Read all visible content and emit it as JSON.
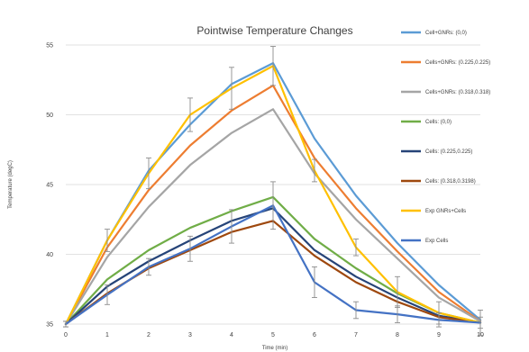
{
  "chart_data": {
    "type": "line",
    "title": "Pointwise Temperature Changes",
    "xlabel": "Time (min)",
    "ylabel": "Temperature (degC)",
    "x": [
      0,
      1,
      2,
      3,
      4,
      5,
      6,
      7,
      8,
      9,
      10
    ],
    "xlim": [
      0,
      10
    ],
    "ylim": [
      35,
      55
    ],
    "yticks": [
      35,
      40,
      45,
      50,
      55
    ],
    "grid": true,
    "legend_position": "right",
    "series": [
      {
        "name": "Cell+GNRs: (0,0)",
        "color": "#5b9bd5",
        "errorbars": false,
        "values": [
          35,
          41.0,
          46.0,
          49.3,
          52.2,
          53.7,
          48.3,
          44.2,
          40.8,
          37.8,
          35.3
        ]
      },
      {
        "name": "Cells+GNRs: (0.225,0.225)",
        "color": "#ed7d31",
        "errorbars": false,
        "values": [
          35,
          40.5,
          44.6,
          47.8,
          50.3,
          52.1,
          46.9,
          43.3,
          40.2,
          37.3,
          35.2
        ]
      },
      {
        "name": "Cells+GNRs: (0.318,0.318)",
        "color": "#a5a5a5",
        "errorbars": false,
        "values": [
          35,
          39.8,
          43.4,
          46.4,
          48.7,
          50.4,
          45.8,
          42.5,
          39.7,
          36.9,
          35.2
        ]
      },
      {
        "name": "Cells: (0,0)",
        "color": "#70ad47",
        "errorbars": false,
        "values": [
          35,
          38.2,
          40.3,
          41.9,
          43.1,
          44.1,
          41.1,
          39.0,
          37.2,
          35.8,
          35.1
        ]
      },
      {
        "name": "Cells: (0.225,0.225)",
        "color": "#264478",
        "errorbars": false,
        "values": [
          35,
          37.7,
          39.5,
          41.0,
          42.4,
          43.3,
          40.3,
          38.4,
          36.9,
          35.6,
          35.1
        ]
      },
      {
        "name": "Cells: (0.318,0.3198)",
        "color": "#9e480e",
        "errorbars": false,
        "values": [
          35,
          37.2,
          39.0,
          40.3,
          41.6,
          42.4,
          39.9,
          38.0,
          36.6,
          35.5,
          35.1
        ]
      },
      {
        "name": "Exp GNRs+Cells",
        "color": "#ffc000",
        "errorbars": true,
        "values": [
          35,
          41.0,
          45.8,
          50.0,
          51.9,
          53.5,
          46.0,
          40.5,
          37.3,
          35.8,
          35.1
        ],
        "errors": [
          0.2,
          0.8,
          1.1,
          1.2,
          1.5,
          1.4,
          0.8,
          0.6,
          1.1,
          0.8,
          0.9
        ]
      },
      {
        "name": "Exp Cells",
        "color": "#4472c4",
        "errorbars": true,
        "values": [
          35,
          37.1,
          39.1,
          40.4,
          42.0,
          43.5,
          38.0,
          36.0,
          35.7,
          35.3,
          35.1
        ],
        "errors": [
          0.2,
          0.7,
          0.6,
          0.9,
          1.2,
          1.7,
          1.1,
          0.6,
          0.6,
          0.5,
          0.4
        ]
      }
    ]
  }
}
